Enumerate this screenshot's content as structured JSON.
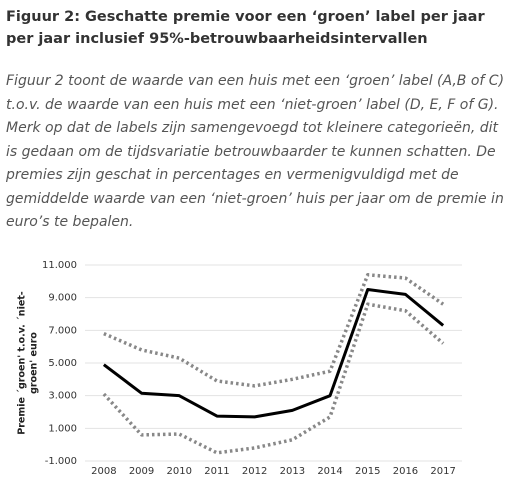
{
  "heading": "Figuur 2: Geschatte premie voor een ‘groen’ label per jaar per jaar inclusief 95%-betrouwbaarheidsintervallen",
  "caption": "Figuur 2 toont de waarde van een huis met een ‘groen’ label (A,B of C) t.o.v. de waarde van een huis met een ‘niet-groen’ label (D, E, F of G). Merk op dat de labels zijn samengevoegd tot kleinere categorieën, dit is gedaan om de tijdsvariatie betrouwbaarder te kunnen schatten. De premies zijn geschat in percentages en vermenigvuldigd met de gemiddelde waarde van een ‘niet-groen’ huis per jaar om de premie in euro’s te bepalen.",
  "chart_data": {
    "type": "line",
    "ylabel": [
      "Premie ´groen' t.o.v. ´niet-",
      "groen' euro"
    ],
    "categories": [
      "2008",
      "2009",
      "2010",
      "2011",
      "2012",
      "2013",
      "2014",
      "2015",
      "2016",
      "2017"
    ],
    "series": [
      {
        "color": "#888888",
        "dash": "dotted",
        "values": [
          6800,
          5800,
          5300,
          3900,
          3600,
          4000,
          4500,
          10400,
          10200,
          8600
        ]
      },
      {
        "color": "#000000",
        "dash": "solid",
        "values": [
          4900,
          3150,
          3000,
          1750,
          1700,
          2100,
          3000,
          9500,
          9200,
          7300
        ]
      },
      {
        "color": "#888888",
        "dash": "dotted",
        "values": [
          3100,
          600,
          650,
          -500,
          -200,
          300,
          1700,
          8600,
          8200,
          6200
        ]
      }
    ],
    "ylim": [
      -1000,
      11000
    ],
    "yticks": [
      {
        "value": -1000,
        "label": "-1.000"
      },
      {
        "value": 1000,
        "label": "1.000"
      },
      {
        "value": 3000,
        "label": "3.000"
      },
      {
        "value": 5000,
        "label": "5.000"
      },
      {
        "value": 7000,
        "label": "7.000"
      },
      {
        "value": 9000,
        "label": "9.000"
      },
      {
        "value": 11000,
        "label": "11.000"
      }
    ],
    "grid": true
  }
}
